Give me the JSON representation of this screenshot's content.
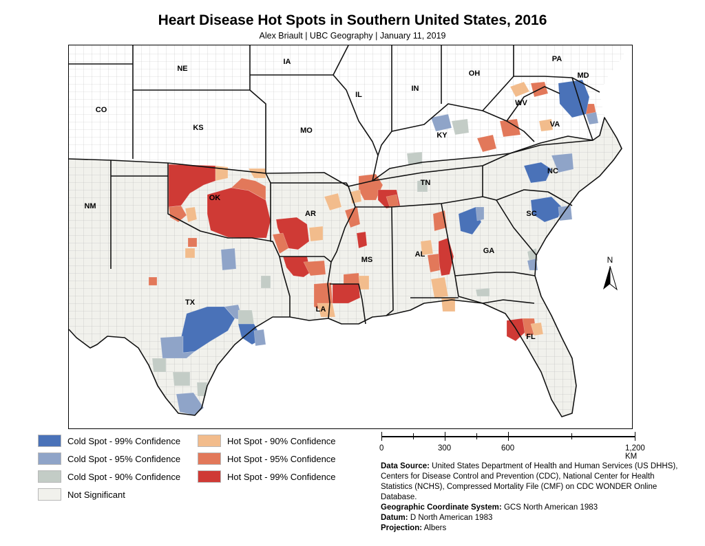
{
  "title": "Heart Disease Hot Spots in Southern United States, 2016",
  "subtitle": "Alex Briault  |  UBC Geography  | January 11, 2019",
  "colors": {
    "cold99": "#4a72b8",
    "cold95": "#8fa4c8",
    "cold90": "#c3ccc6",
    "not_significant": "#f1f1ec",
    "hot90": "#f2bc8c",
    "hot95": "#e2785a",
    "hot99": "#cf3a35",
    "county_line": "#b5b5b5",
    "state_line": "#111111"
  },
  "legend": {
    "cold99": "Cold Spot - 99% Confidence",
    "cold95": "Cold Spot - 95% Confidence",
    "cold90": "Cold Spot - 90% Confidence",
    "not_significant": "Not Significant",
    "hot90": "Hot Spot - 90% Confidence",
    "hot95": "Hot Spot - 95% Confidence",
    "hot99": "Hot Spot - 99% Confidence"
  },
  "states": [
    "NE",
    "IA",
    "PA",
    "MD",
    "OH",
    "IN",
    "IL",
    "CO",
    "KS",
    "MO",
    "WV",
    "VA",
    "KY",
    "NC",
    "TN",
    "OK",
    "AR",
    "NM",
    "SC",
    "GA",
    "MS",
    "AL",
    "TX",
    "LA",
    "FL"
  ],
  "north_arrow": "N",
  "scale": {
    "labels": [
      "0",
      "300",
      "600",
      "1,200 KM"
    ]
  },
  "source": {
    "data_source_label": "Data Source:",
    "data_source_text": "United States Department of Health and Human Services (US DHHS), Centers for Disease Control and Prevention (CDC), National Center for Health Statistics (NCHS), Compressed Mortality File (CMF) on CDC WONDER Online Database.",
    "gcs_label": "Geographic Coordinate System:",
    "gcs_text": "GCS North American 1983",
    "datum_label": "Datum:",
    "datum_text": "D North American 1983",
    "projection_label": "Projection:",
    "projection_text": "Albers"
  }
}
